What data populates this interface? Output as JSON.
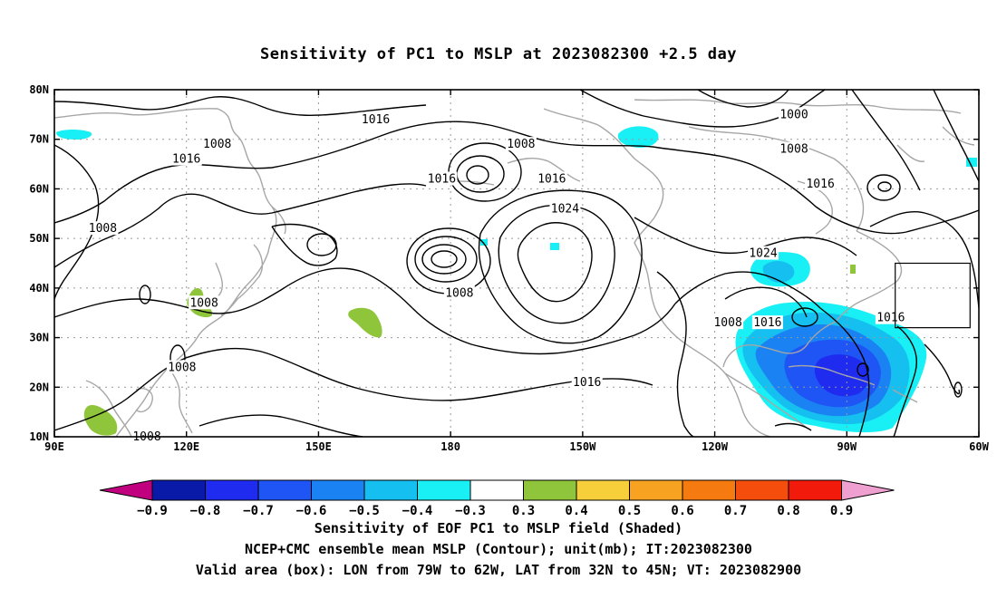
{
  "title": "Sensitivity of PC1 to MSLP at 2023082300 +2.5 day",
  "map": {
    "lon_labels": [
      "90E",
      "120E",
      "150E",
      "180",
      "150W",
      "120W",
      "90W",
      "60W"
    ],
    "lat_labels": [
      "80N",
      "70N",
      "60N",
      "50N",
      "40N",
      "30N",
      "20N",
      "10N"
    ],
    "lon_range": [
      90,
      300
    ],
    "lat_range": [
      10,
      80
    ],
    "grid": "dotted",
    "contour_labels": [
      {
        "text": "1016",
        "lon": 163,
        "lat": 74
      },
      {
        "text": "1016",
        "lon": 120,
        "lat": 66
      },
      {
        "text": "1016",
        "lon": 178,
        "lat": 62
      },
      {
        "text": "1008",
        "lon": 127,
        "lat": 69
      },
      {
        "text": "1008",
        "lon": 196,
        "lat": 69
      },
      {
        "text": "1016",
        "lon": 203,
        "lat": 62
      },
      {
        "text": "1024",
        "lon": 206,
        "lat": 56
      },
      {
        "text": "1000",
        "lon": 258,
        "lat": 75
      },
      {
        "text": "1008",
        "lon": 258,
        "lat": 68
      },
      {
        "text": "1016",
        "lon": 264,
        "lat": 61
      },
      {
        "text": "1008",
        "lon": 101,
        "lat": 52
      },
      {
        "text": "1024",
        "lon": 251,
        "lat": 47
      },
      {
        "text": "1008",
        "lon": 182,
        "lat": 39
      },
      {
        "text": "1008",
        "lon": 124,
        "lat": 37
      },
      {
        "text": "1016",
        "lon": 280,
        "lat": 34
      },
      {
        "text": "1008",
        "lon": 243,
        "lat": 33
      },
      {
        "text": "1016",
        "lon": 252,
        "lat": 33
      },
      {
        "text": "1008",
        "lon": 119,
        "lat": 24
      },
      {
        "text": "1016",
        "lon": 211,
        "lat": 21
      },
      {
        "text": "1008",
        "lon": 111,
        "lat": 10
      }
    ],
    "valid_box": {
      "lon": [
        -79,
        -62
      ],
      "lat": [
        32,
        45
      ]
    }
  },
  "colorbar": {
    "labels": [
      "−0.9",
      "−0.8",
      "−0.7",
      "−0.6",
      "−0.5",
      "−0.4",
      "−0.3",
      "0.3",
      "0.4",
      "0.5",
      "0.6",
      "0.7",
      "0.8",
      "0.9"
    ],
    "colors": [
      "#c0007f",
      "#0a1aa8",
      "#1f2cf0",
      "#1f55f5",
      "#1a82f2",
      "#15bff0",
      "#18f0f5",
      "#ffffff",
      "#8fc53a",
      "#f7cf3a",
      "#f7a220",
      "#f57a10",
      "#f54d0c",
      "#f21a0a",
      "#ef9fd0"
    ]
  },
  "footer": {
    "line1": "Sensitivity of EOF PC1 to MSLP field (Shaded)",
    "line2": "NCEP+CMC ensemble mean MSLP (Contour); unit(mb); IT:2023082300",
    "line3": "Valid area (box): LON from 79W to 62W, LAT from 32N to 45N; VT: 2023082900"
  }
}
